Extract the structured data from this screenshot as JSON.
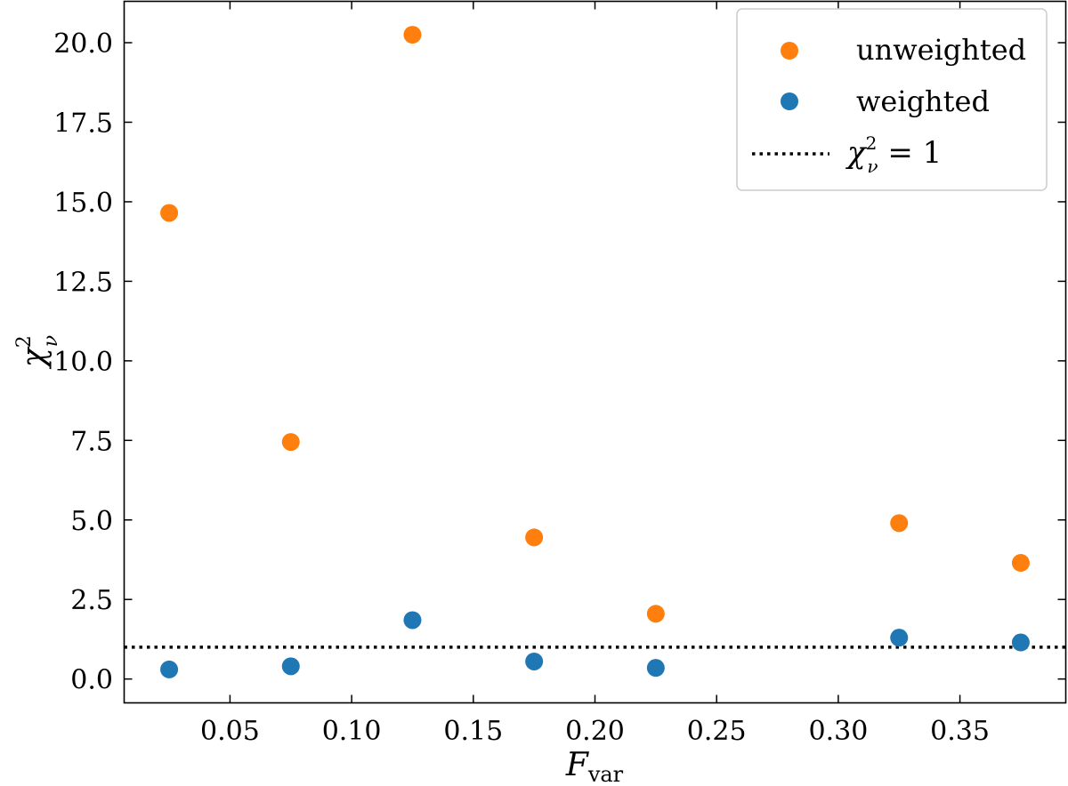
{
  "chart_data": {
    "type": "scatter",
    "xlabel": "F",
    "xlabel_sub": "var",
    "ylabel": "χ",
    "ylabel_sup": "2",
    "ylabel_sub": "ν",
    "xlim": [
      0.0065,
      0.3935
    ],
    "ylim": [
      -0.75,
      21.3
    ],
    "xticks": [
      0.05,
      0.1,
      0.15,
      0.2,
      0.25,
      0.3,
      0.35
    ],
    "xtick_labels": [
      "0.05",
      "0.10",
      "0.15",
      "0.20",
      "0.25",
      "0.30",
      "0.35"
    ],
    "yticks": [
      0.0,
      2.5,
      5.0,
      7.5,
      10.0,
      12.5,
      15.0,
      17.5,
      20.0
    ],
    "ytick_labels": [
      "0.0",
      "2.5",
      "5.0",
      "7.5",
      "10.0",
      "12.5",
      "15.0",
      "17.5",
      "20.0"
    ],
    "grid": false,
    "legend_position": "top-right",
    "series": [
      {
        "name": "unweighted",
        "color": "#ff7f0e",
        "x": [
          0.025,
          0.075,
          0.125,
          0.175,
          0.225,
          0.325,
          0.375
        ],
        "y": [
          14.65,
          7.45,
          20.25,
          4.45,
          2.05,
          4.9,
          3.65
        ]
      },
      {
        "name": "weighted",
        "color": "#1f77b4",
        "x": [
          0.025,
          0.075,
          0.125,
          0.175,
          0.225,
          0.325,
          0.375
        ],
        "y": [
          0.3,
          0.4,
          1.85,
          0.55,
          0.35,
          1.3,
          1.15
        ]
      }
    ],
    "reference_line": {
      "y": 1.0,
      "style": "dotted",
      "color": "#000000",
      "legend_lhs": "χ",
      "legend_sup": "2",
      "legend_sub": "ν",
      "legend_rhs": " = 1"
    }
  }
}
